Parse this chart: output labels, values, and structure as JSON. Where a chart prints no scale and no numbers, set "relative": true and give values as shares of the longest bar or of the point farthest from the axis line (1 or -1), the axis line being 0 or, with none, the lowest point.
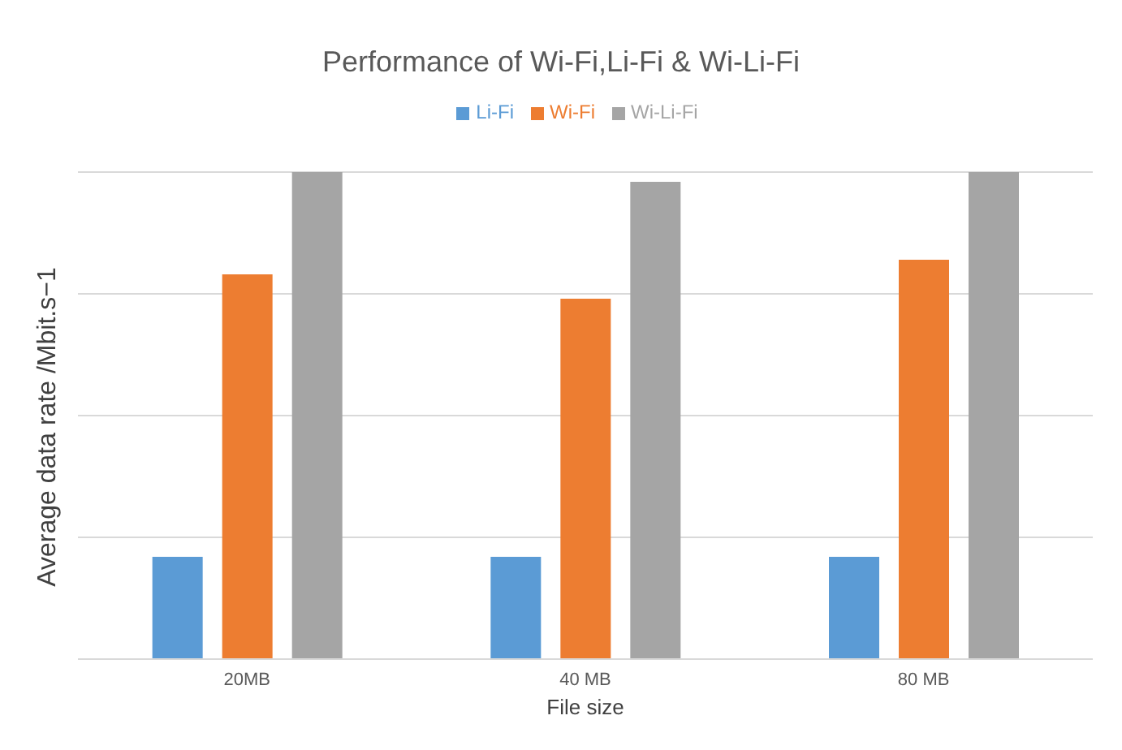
{
  "chart_data": {
    "type": "bar",
    "title": "Performance of Wi-Fi,Li-Fi & Wi-Li-Fi",
    "xlabel": "File size",
    "ylabel": "Average data rate /Mbit.s−1",
    "categories": [
      "20MB",
      "40 MB",
      "80 MB"
    ],
    "relative": true,
    "grid": "y",
    "legend": "top",
    "series": [
      {
        "name": "Li-Fi",
        "color": "#5b9bd5",
        "values": [
          0.21,
          0.21,
          0.21
        ]
      },
      {
        "name": "Wi-Fi",
        "color": "#ed7d31",
        "values": [
          0.79,
          0.74,
          0.82
        ]
      },
      {
        "name": "Wi-Li-Fi",
        "color": "#a5a5a5",
        "values": [
          1,
          0.98,
          1
        ]
      }
    ]
  }
}
